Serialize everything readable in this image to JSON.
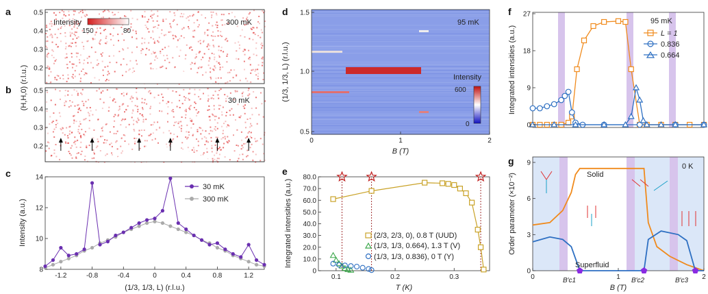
{
  "panels": {
    "a": {
      "label": "a",
      "temp": "300 mK",
      "cbar_label": "Intensity",
      "cbar_min": "150",
      "cbar_max": "80",
      "yticks": [
        "0.5",
        "0.4",
        "0.3",
        "0.2"
      ]
    },
    "b": {
      "label": "b",
      "temp": "30 mK",
      "yticks": [
        "0.5",
        "0.4",
        "0.3",
        "0.2"
      ],
      "arrows_at_l": [
        -1.2,
        -0.8,
        -0.2,
        0.2,
        0.8,
        1.2
      ]
    },
    "ab_ylabel": "(H,H,0) (r.l.u.)",
    "c": {
      "label": "c",
      "ylabel": "Intensity (a.u.)",
      "xlabel": "(1/3, 1/3, L) (r.l.u.)",
      "yticks": [
        "8",
        "10",
        "12",
        "14"
      ],
      "xticks": [
        "-1.2",
        "-0.8",
        "-0.4",
        "0",
        "0.4",
        "0.8",
        "1.2"
      ],
      "legend": [
        "30 mK",
        "300 mK"
      ]
    },
    "d": {
      "label": "d",
      "temp": "95 mK",
      "ylabel": "(1/3, 1/3, L) (r.l.u.)",
      "xlabel": "B (T)",
      "yticks": [
        "1.5",
        "1.0",
        "0.5"
      ],
      "xticks": [
        "0",
        "1",
        "2"
      ],
      "cbar_label": "Intensity",
      "cbar_max": "600",
      "cbar_min": "0"
    },
    "e": {
      "label": "e",
      "ylabel": "Integrated intensities (a.u.)",
      "xlabel": "T (K)",
      "yticks": [
        "0",
        "10.0",
        "20.0",
        "30.0",
        "40.0",
        "50.0",
        "60.0",
        "70.0",
        "80.0"
      ],
      "xticks": [
        "0.1",
        "0.2",
        "0.3"
      ],
      "legend": [
        "(2/3, 2/3, 0), 0.8 T (UUD)",
        "(1/3, 1/3, 0.664), 1.3 T (V)",
        "(1/3, 1/3, 0.836), 0 T (Y)"
      ]
    },
    "f": {
      "label": "f",
      "temp": "95 mK",
      "ylabel": "Integrated intensities (a.u.)",
      "yticks": [
        "0",
        "9",
        "18",
        "27"
      ],
      "legend": [
        "L = 1",
        "0.836",
        "0.664"
      ]
    },
    "g": {
      "label": "g",
      "temp": "0 K",
      "ylabel": "Order parameter (×10⁻²)",
      "xlabel": "B (T)",
      "yticks": [
        "0",
        "3",
        "6",
        "9"
      ],
      "xticks": [
        "0",
        "1",
        "2"
      ],
      "solid": "Solid",
      "superfluid": "Superfluid",
      "bc1": "B′c1",
      "bc2": "B′c2",
      "bc3": "B′c3"
    }
  },
  "chart_data": [
    {
      "type": "scatter",
      "panel": "c",
      "series": [
        {
          "name": "30 mK",
          "x": [
            -1.4,
            -1.3,
            -1.2,
            -1.1,
            -1.0,
            -0.9,
            -0.8,
            -0.7,
            -0.6,
            -0.5,
            -0.4,
            -0.3,
            -0.2,
            -0.1,
            0.0,
            0.1,
            0.2,
            0.3,
            0.4,
            0.5,
            0.6,
            0.7,
            0.8,
            0.9,
            1.0,
            1.1,
            1.2,
            1.3,
            1.4
          ],
          "values": [
            8.2,
            8.6,
            9.4,
            8.9,
            9.0,
            9.3,
            13.6,
            9.6,
            9.8,
            10.2,
            10.4,
            10.7,
            11.0,
            11.2,
            11.3,
            11.8,
            13.9,
            11.0,
            10.6,
            10.2,
            9.9,
            9.6,
            9.7,
            9.3,
            9.0,
            8.8,
            9.6,
            8.6,
            8.3
          ]
        },
        {
          "name": "300 mK",
          "x": [
            -1.4,
            -1.3,
            -1.2,
            -1.1,
            -1.0,
            -0.9,
            -0.8,
            -0.7,
            -0.6,
            -0.5,
            -0.4,
            -0.3,
            -0.2,
            -0.1,
            0.0,
            0.1,
            0.2,
            0.3,
            0.4,
            0.5,
            0.6,
            0.7,
            0.8,
            0.9,
            1.0,
            1.1,
            1.2,
            1.3,
            1.4
          ],
          "values": [
            8.1,
            8.3,
            8.5,
            8.7,
            8.9,
            9.2,
            9.4,
            9.7,
            9.9,
            10.1,
            10.4,
            10.6,
            10.8,
            11.0,
            11.1,
            11.0,
            10.8,
            10.6,
            10.4,
            10.2,
            9.9,
            9.7,
            9.4,
            9.2,
            8.9,
            8.7,
            8.5,
            8.3,
            8.2
          ]
        }
      ],
      "xlim": [
        -1.4,
        1.4
      ],
      "ylim": [
        8,
        14
      ]
    },
    {
      "type": "scatter",
      "panel": "e",
      "series": [
        {
          "name": "(2/3, 2/3, 0), 0.8 T (UUD)",
          "x": [
            0.095,
            0.16,
            0.25,
            0.28,
            0.29,
            0.3,
            0.31,
            0.32,
            0.33,
            0.34,
            0.345,
            0.35
          ],
          "values": [
            61,
            68,
            75,
            74.5,
            74,
            73,
            70,
            66,
            58,
            35,
            20,
            1
          ]
        },
        {
          "name": "(1/3, 1/3, 0.664), 1.3 T (V)",
          "x": [
            0.095,
            0.1,
            0.105,
            0.11,
            0.115,
            0.12,
            0.125
          ],
          "values": [
            13,
            9,
            6,
            4,
            2,
            1,
            0.5
          ]
        },
        {
          "name": "(1/3, 1/3, 0.836), 0 T (Y)",
          "x": [
            0.095,
            0.105,
            0.115,
            0.125,
            0.135,
            0.145,
            0.155,
            0.16
          ],
          "values": [
            6,
            5,
            4.5,
            4,
            3.5,
            2.5,
            1.5,
            0.5
          ]
        }
      ],
      "xlim": [
        0.07,
        0.36
      ],
      "ylim": [
        0,
        80
      ],
      "stars_at_t": [
        0.11,
        0.16,
        0.345
      ]
    },
    {
      "type": "line",
      "panel": "f",
      "series": [
        {
          "name": "L = 1",
          "x": [
            0.0,
            0.1,
            0.2,
            0.3,
            0.4,
            0.5,
            0.55,
            0.62,
            0.72,
            0.85,
            1.0,
            1.2,
            1.3,
            1.38,
            1.5,
            1.6,
            1.8,
            2.0,
            2.2,
            2.4
          ],
          "values": [
            0,
            0,
            0,
            0,
            0,
            0.5,
            2,
            13.5,
            20.5,
            24,
            25,
            25.2,
            25,
            13.5,
            0,
            0,
            0,
            0,
            0,
            0
          ]
        },
        {
          "name": "0.836",
          "x": [
            0.0,
            0.1,
            0.2,
            0.3,
            0.4,
            0.45,
            0.5,
            0.55,
            0.6,
            0.7,
            1.0,
            1.5,
            2.0,
            2.4
          ],
          "values": [
            4,
            4,
            4.5,
            5,
            6,
            7,
            8,
            3,
            0.5,
            0,
            0,
            0,
            0,
            0
          ]
        },
        {
          "name": "0.664",
          "x": [
            0.0,
            0.3,
            0.6,
            1.0,
            1.3,
            1.38,
            1.45,
            1.5,
            1.55,
            1.6,
            1.8,
            2.0,
            2.4
          ],
          "values": [
            0,
            0,
            0,
            0,
            0,
            2,
            9,
            6,
            1,
            0,
            0,
            0,
            0
          ]
        }
      ],
      "xlim": [
        0,
        2.4
      ],
      "ylim": [
        0,
        27
      ]
    },
    {
      "type": "line",
      "panel": "g",
      "series": [
        {
          "name": "Solid",
          "x": [
            0,
            0.2,
            0.35,
            0.45,
            0.5,
            0.55,
            0.6,
            0.7,
            1.2,
            1.3,
            1.35,
            1.45,
            1.6,
            1.8,
            2.0
          ],
          "values": [
            3.8,
            4.0,
            5.0,
            6.5,
            8.0,
            8.5,
            8.5,
            8.5,
            8.5,
            8.5,
            4.0,
            2.0,
            1.2,
            0.5,
            0
          ]
        },
        {
          "name": "Superfluid",
          "x": [
            0,
            0.2,
            0.35,
            0.45,
            0.55,
            1.3,
            1.35,
            1.5,
            1.7,
            1.8,
            1.9,
            2.0
          ],
          "values": [
            2.4,
            2.8,
            2.6,
            2.0,
            0,
            0,
            2.6,
            3.3,
            3.0,
            2.5,
            0,
            0
          ]
        }
      ],
      "xlim": [
        0,
        2
      ],
      "ylim": [
        0,
        9
      ]
    }
  ]
}
